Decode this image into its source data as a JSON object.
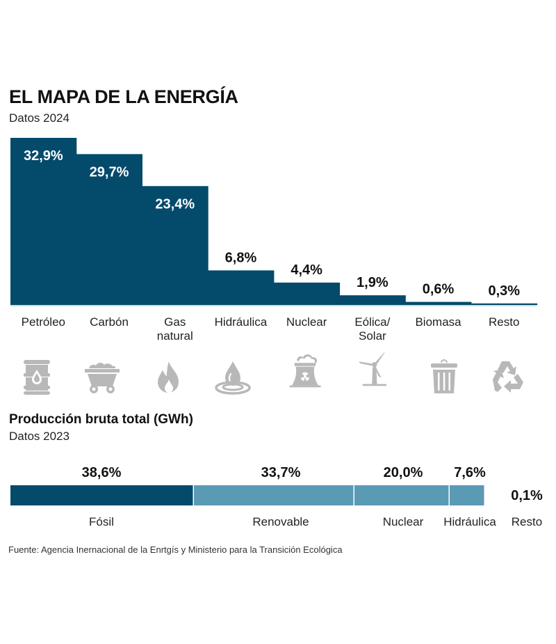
{
  "header": {
    "title": "EL MAPA DE LA ENERGÍA",
    "subtitle": "Datos 2024"
  },
  "colors": {
    "dark_bar": "#044a6b",
    "light_bar": "#5b9ab5",
    "icon_gray": "#b8b8b8",
    "baseline": "#c5dfe9"
  },
  "chart_data": [
    {
      "type": "bar",
      "title": "EL MAPA DE LA ENERGÍA",
      "subtitle": "Datos 2024",
      "xlabel": "",
      "ylabel": "",
      "ylim": [
        0,
        32.9
      ],
      "grid": false,
      "categories": [
        "Petróleo",
        "Carbón",
        "Gas natural",
        "Hidráulica",
        "Nuclear",
        "Eólica/ Solar",
        "Biomasa",
        "Resto"
      ],
      "category_lines": [
        [
          "Petróleo"
        ],
        [
          "Carbón"
        ],
        [
          "Gas",
          "natural"
        ],
        [
          "Hidráulica"
        ],
        [
          "Nuclear"
        ],
        [
          "Eólica/",
          "Solar"
        ],
        [
          "Biomasa"
        ],
        [
          "Resto"
        ]
      ],
      "values": [
        32.9,
        29.7,
        23.4,
        6.8,
        4.4,
        1.9,
        0.6,
        0.3
      ],
      "value_labels": [
        "32,9%",
        "29,7%",
        "23,4%",
        "6,8%",
        "4,4%",
        "1,9%",
        "0,6%",
        "0,3%"
      ],
      "icons": [
        "oil-barrel-icon",
        "coal-cart-icon",
        "flame-icon",
        "water-drop-icon",
        "nuclear-plant-icon",
        "wind-turbine-icon",
        "trash-bin-icon",
        "recycle-icon"
      ]
    },
    {
      "type": "bar",
      "orientation": "horizontal-stacked",
      "title": "Producción bruta total (GWh)",
      "subtitle": "Datos 2023",
      "categories": [
        "Fósil",
        "Renovable",
        "Nuclear",
        "Hidráulica",
        "Resto"
      ],
      "values": [
        38.6,
        33.7,
        20.0,
        7.6,
        0.1
      ],
      "value_labels": [
        "38,6%",
        "33,7%",
        "20,0%",
        "7,6%",
        "0,1%"
      ],
      "series_colors": [
        "dark",
        "light",
        "light",
        "light",
        "light"
      ]
    }
  ],
  "footer": {
    "source": "Fuente: Agencia Inernacional de la Enrtgís y Ministerio para la Transición Ecológica"
  }
}
